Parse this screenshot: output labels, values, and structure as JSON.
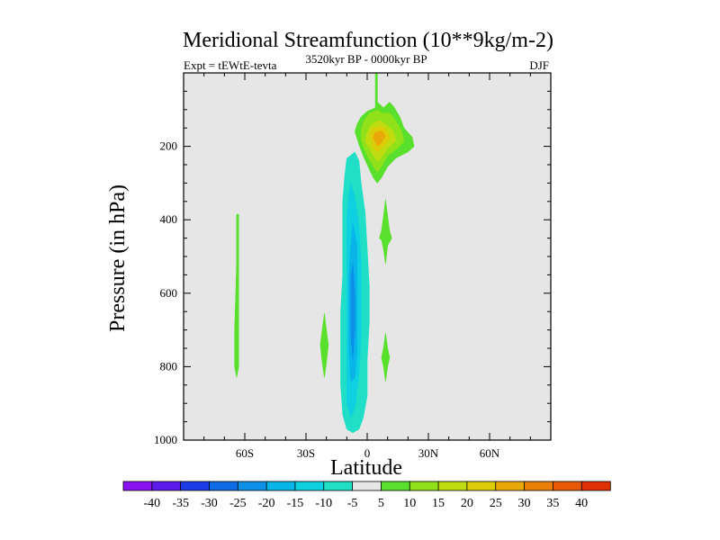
{
  "chart_data": {
    "type": "contour",
    "title": "Meridional Streamfunction (10**9kg/m-2)",
    "left_string": "Expt = tEWtE-tevta",
    "center_string": "3520kyr BP - 0000kyr BP",
    "right_string": "DJF",
    "xlabel": "Latitude",
    "ylabel": "Pressure (in hPa)",
    "xlim": [
      -90,
      90
    ],
    "ylim": [
      1000,
      0
    ],
    "x_ticks": [
      {
        "value": -60,
        "label": "60S"
      },
      {
        "value": -30,
        "label": "30S"
      },
      {
        "value": 0,
        "label": "0"
      },
      {
        "value": 30,
        "label": "30N"
      },
      {
        "value": 60,
        "label": "60N"
      }
    ],
    "y_ticks": [
      {
        "value": 200,
        "label": "200"
      },
      {
        "value": 400,
        "label": "400"
      },
      {
        "value": 600,
        "label": "600"
      },
      {
        "value": 800,
        "label": "800"
      },
      {
        "value": 1000,
        "label": "1000"
      }
    ],
    "background_color": "#e6e6e6",
    "colorbar": {
      "labels": [
        "-40",
        "-35",
        "-30",
        "-25",
        "-20",
        "-15",
        "-10",
        "-5",
        "5",
        "10",
        "15",
        "20",
        "25",
        "30",
        "35",
        "40"
      ],
      "colors": [
        "#8a11f0",
        "#5a1ae8",
        "#1e3ce6",
        "#0f6be6",
        "#0d91e8",
        "#08b4e8",
        "#0ed0e0",
        "#20dfc6",
        "#e6e6e6",
        "#58e02c",
        "#90e01a",
        "#bedc10",
        "#ddcc0a",
        "#e8a808",
        "#ea8006",
        "#e85a06",
        "#e03006"
      ]
    },
    "regions": [
      {
        "label": "-5",
        "color": "#20dfc6",
        "points": [
          [
            -10,
            233
          ],
          [
            -6,
            216
          ],
          [
            -4,
            240
          ],
          [
            -3,
            300
          ],
          [
            -1,
            380
          ],
          [
            0,
            480
          ],
          [
            1,
            580
          ],
          [
            1,
            680
          ],
          [
            0,
            780
          ],
          [
            0,
            880
          ],
          [
            -2,
            940
          ],
          [
            -4,
            970
          ],
          [
            -7,
            980
          ],
          [
            -10,
            970
          ],
          [
            -12,
            930
          ],
          [
            -13,
            850
          ],
          [
            -13,
            750
          ],
          [
            -13,
            650
          ],
          [
            -12,
            550
          ],
          [
            -12,
            450
          ],
          [
            -12,
            350
          ],
          [
            -11,
            280
          ]
        ]
      },
      {
        "label": "-10",
        "color": "#0ed0e0",
        "points": [
          [
            -8,
            300
          ],
          [
            -6,
            340
          ],
          [
            -4,
            420
          ],
          [
            -3,
            520
          ],
          [
            -3,
            620
          ],
          [
            -3,
            720
          ],
          [
            -4,
            820
          ],
          [
            -6,
            910
          ],
          [
            -8,
            940
          ],
          [
            -10,
            900
          ],
          [
            -10,
            800
          ],
          [
            -10,
            700
          ],
          [
            -10,
            600
          ],
          [
            -10,
            500
          ],
          [
            -10,
            400
          ],
          [
            -9,
            330
          ]
        ]
      },
      {
        "label": "-15",
        "color": "#08b4e8",
        "points": [
          [
            -7,
            410
          ],
          [
            -5,
            470
          ],
          [
            -5,
            550
          ],
          [
            -5,
            650
          ],
          [
            -5,
            760
          ],
          [
            -6,
            830
          ],
          [
            -8,
            840
          ],
          [
            -9,
            760
          ],
          [
            -9,
            650
          ],
          [
            -9,
            550
          ],
          [
            -8,
            470
          ]
        ]
      },
      {
        "label": "-20",
        "color": "#0d91e8",
        "points": [
          [
            -7,
            520
          ],
          [
            -6,
            600
          ],
          [
            -6,
            700
          ],
          [
            -7,
            780
          ],
          [
            -8,
            720
          ],
          [
            -8,
            620
          ],
          [
            -8,
            550
          ]
        ]
      },
      {
        "label": "5",
        "color": "#58e02c",
        "points": [
          [
            4,
            0
          ],
          [
            5,
            0
          ],
          [
            5,
            80
          ],
          [
            8,
            95
          ],
          [
            11,
            80
          ],
          [
            13,
            92
          ],
          [
            16,
            120
          ],
          [
            18,
            150
          ],
          [
            22,
            175
          ],
          [
            23,
            200
          ],
          [
            20,
            215
          ],
          [
            14,
            232
          ],
          [
            10,
            255
          ],
          [
            7,
            285
          ],
          [
            5,
            300
          ],
          [
            3,
            285
          ],
          [
            0,
            250
          ],
          [
            -2,
            225
          ],
          [
            -4,
            195
          ],
          [
            -6,
            160
          ],
          [
            -5,
            140
          ],
          [
            -3,
            120
          ],
          [
            0,
            105
          ],
          [
            4,
            95
          ]
        ]
      },
      {
        "label": "10",
        "color": "#90e01a",
        "points": [
          [
            1,
            110
          ],
          [
            5,
            102
          ],
          [
            8,
            110
          ],
          [
            11,
            110
          ],
          [
            14,
            130
          ],
          [
            17,
            160
          ],
          [
            18,
            185
          ],
          [
            15,
            205
          ],
          [
            10,
            225
          ],
          [
            7,
            255
          ],
          [
            5,
            270
          ],
          [
            3,
            255
          ],
          [
            0,
            225
          ],
          [
            -2,
            200
          ],
          [
            -3,
            180
          ],
          [
            -3,
            158
          ],
          [
            -2,
            135
          ]
        ]
      },
      {
        "label": "15",
        "color": "#bedc10",
        "points": [
          [
            2,
            140
          ],
          [
            6,
            130
          ],
          [
            9,
            140
          ],
          [
            13,
            160
          ],
          [
            14,
            185
          ],
          [
            10,
            205
          ],
          [
            7,
            230
          ],
          [
            5,
            240
          ],
          [
            3,
            225
          ],
          [
            1,
            205
          ],
          [
            -1,
            185
          ],
          [
            0,
            162
          ]
        ]
      },
      {
        "label": "20",
        "color": "#ddcc0a",
        "points": [
          [
            3,
            152
          ],
          [
            7,
            145
          ],
          [
            10,
            160
          ],
          [
            11,
            180
          ],
          [
            8,
            200
          ],
          [
            5,
            215
          ],
          [
            3,
            205
          ],
          [
            2,
            185
          ],
          [
            1,
            168
          ]
        ]
      },
      {
        "label": "25",
        "color": "#e8a808",
        "points": [
          [
            4,
            162
          ],
          [
            7,
            158
          ],
          [
            9,
            172
          ],
          [
            7,
            190
          ],
          [
            5,
            198
          ],
          [
            4,
            188
          ],
          [
            3,
            175
          ]
        ]
      },
      {
        "label": "5",
        "color": "#58e02c",
        "points": [
          [
            -64,
            385
          ],
          [
            -63,
            385
          ],
          [
            -63,
            520
          ],
          [
            -63,
            700
          ],
          [
            -63,
            800
          ],
          [
            -64,
            830
          ],
          [
            -65,
            800
          ],
          [
            -65,
            700
          ],
          [
            -64,
            520
          ]
        ]
      },
      {
        "label": "5",
        "color": "#58e02c",
        "points": [
          [
            -21,
            655
          ],
          [
            -20,
            700
          ],
          [
            -19,
            740
          ],
          [
            -20,
            790
          ],
          [
            -21,
            830
          ],
          [
            -22,
            790
          ],
          [
            -23,
            740
          ],
          [
            -22,
            700
          ]
        ]
      },
      {
        "label": "5",
        "color": "#58e02c",
        "points": [
          [
            9,
            345
          ],
          [
            10,
            390
          ],
          [
            11,
            430
          ],
          [
            12,
            450
          ],
          [
            10,
            470
          ],
          [
            9,
            520
          ],
          [
            8,
            480
          ],
          [
            7,
            455
          ],
          [
            6,
            450
          ],
          [
            7,
            430
          ],
          [
            8,
            390
          ]
        ]
      },
      {
        "label": "5",
        "color": "#58e02c",
        "points": [
          [
            9,
            708
          ],
          [
            10,
            750
          ],
          [
            11,
            775
          ],
          [
            10,
            800
          ],
          [
            9,
            840
          ],
          [
            8,
            800
          ],
          [
            7,
            775
          ],
          [
            8,
            750
          ]
        ]
      }
    ]
  }
}
